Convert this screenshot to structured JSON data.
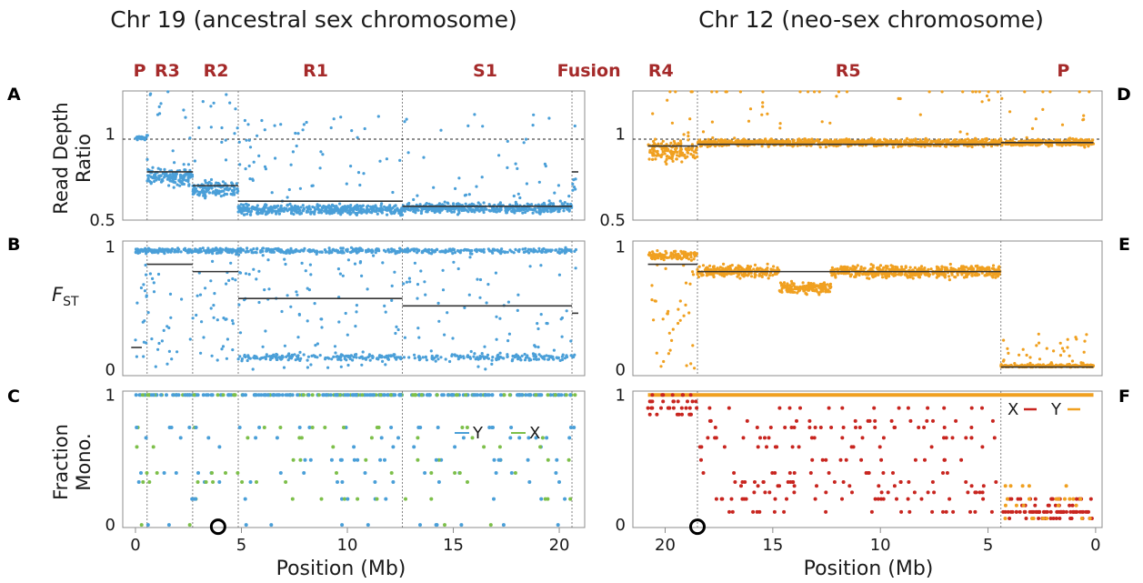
{
  "colors": {
    "chr19_y": "#4a9fd8",
    "chr19_x": "#7dbf4a",
    "chr12_x": "#c8251f",
    "chr12_y": "#f0a020",
    "chr12_points": "#f0a020",
    "region_label": "#a52a2a",
    "segment_line": "#333333"
  },
  "titles": {
    "left": "Chr 19 (ancestral sex chromosome)",
    "right": "Chr 12 (neo-sex chromosome)"
  },
  "regions": {
    "left": [
      {
        "label": "P",
        "x": 0.2
      },
      {
        "label": "R3",
        "x": 1.5
      },
      {
        "label": "R2",
        "x": 3.8
      },
      {
        "label": "R1",
        "x": 8.5
      },
      {
        "label": "S1",
        "x": 16.5
      },
      {
        "label": "Fusion",
        "x": 21.4
      }
    ],
    "right": [
      {
        "label": "R4",
        "x": 20.2
      },
      {
        "label": "R5",
        "x": 11.5
      },
      {
        "label": "P",
        "x": 1.5
      }
    ]
  },
  "panel_letters": [
    "A",
    "B",
    "C",
    "D",
    "E",
    "F"
  ],
  "y_labels": {
    "read_depth_line1": "Read Depth",
    "read_depth_line2": "Ratio",
    "fst_main": "F",
    "fst_sub": "ST",
    "fraction_line1": "Fraction",
    "fraction_line2": "Mono."
  },
  "x_label": "Position (Mb)",
  "legends": {
    "left": [
      {
        "name": "Y",
        "color": "#4a9fd8"
      },
      {
        "name": "X",
        "color": "#7dbf4a"
      }
    ],
    "right": [
      {
        "name": "X",
        "color": "#c8251f"
      },
      {
        "name": "Y",
        "color": "#f0a020"
      }
    ]
  },
  "chart_data": [
    {
      "type": "scatter",
      "panel": "A",
      "chromosome": "Chr 19",
      "xlabel": "Position (Mb)",
      "ylabel": "Read Depth Ratio",
      "x_ticks": [
        0,
        5,
        10,
        15,
        20
      ],
      "y_ticks": [
        0.5,
        1
      ],
      "xlim": [
        -0.6,
        21.2
      ],
      "ylim": [
        0.5,
        1.25
      ],
      "reference_line": 0.97,
      "boundaries": [
        0.55,
        2.7,
        4.85,
        12.6,
        20.6
      ],
      "segments": [
        {
          "x0": 0.55,
          "x1": 2.7,
          "y": 0.78
        },
        {
          "x0": 2.7,
          "x1": 4.85,
          "y": 0.7
        },
        {
          "x0": 4.85,
          "x1": 12.6,
          "y": 0.61
        },
        {
          "x0": 12.6,
          "x1": 20.6,
          "y": 0.58
        },
        {
          "x0": 20.6,
          "x1": 20.9,
          "y": 0.78
        }
      ]
    },
    {
      "type": "scatter",
      "panel": "B",
      "chromosome": "Chr 19",
      "ylabel": "FST",
      "x_ticks": [
        0,
        5,
        10,
        15,
        20
      ],
      "y_ticks": [
        0,
        1
      ],
      "xlim": [
        -0.6,
        21.2
      ],
      "ylim": [
        -0.05,
        1.05
      ],
      "boundaries": [
        0.55,
        2.7,
        4.85,
        12.6,
        20.6
      ],
      "segments": [
        {
          "x0": -0.2,
          "x1": 0.3,
          "y": 0.18
        },
        {
          "x0": 0.55,
          "x1": 2.7,
          "y": 0.86
        },
        {
          "x0": 2.7,
          "x1": 4.85,
          "y": 0.8
        },
        {
          "x0": 4.85,
          "x1": 12.6,
          "y": 0.58
        },
        {
          "x0": 12.6,
          "x1": 20.6,
          "y": 0.52
        },
        {
          "x0": 20.6,
          "x1": 20.9,
          "y": 0.46
        }
      ]
    },
    {
      "type": "scatter",
      "panel": "C",
      "chromosome": "Chr 19",
      "ylabel": "Fraction Mono.",
      "x_ticks": [
        0,
        5,
        10,
        15,
        20
      ],
      "y_ticks": [
        0,
        1
      ],
      "xlim": [
        -0.6,
        21.2
      ],
      "ylim": [
        -0.02,
        1.03
      ],
      "boundaries": [
        0.55,
        2.7,
        4.85,
        12.6,
        20.6
      ],
      "series": [
        {
          "name": "Y"
        },
        {
          "name": "X"
        }
      ],
      "marker_x": 3.9
    },
    {
      "type": "scatter",
      "panel": "D",
      "chromosome": "Chr 12",
      "xlabel": "Position (Mb)",
      "ylabel": "Read Depth Ratio",
      "x_ticks": [
        20,
        15,
        10,
        5,
        0
      ],
      "y_ticks": [
        0.5,
        1
      ],
      "xlim": [
        21.5,
        -0.3
      ],
      "ylim": [
        0.5,
        1.25
      ],
      "reference_line": 0.97,
      "boundaries": [
        18.5,
        4.4
      ],
      "segments": [
        {
          "x0": 20.8,
          "x1": 18.5,
          "y": 0.93
        },
        {
          "x0": 18.5,
          "x1": 4.4,
          "y": 0.94
        },
        {
          "x0": 4.4,
          "x1": 0.1,
          "y": 0.95
        }
      ]
    },
    {
      "type": "scatter",
      "panel": "E",
      "chromosome": "Chr 12",
      "ylabel": "FST",
      "x_ticks": [
        20,
        15,
        10,
        5,
        0
      ],
      "y_ticks": [
        0,
        1
      ],
      "xlim": [
        21.5,
        -0.3
      ],
      "ylim": [
        -0.05,
        1.05
      ],
      "boundaries": [
        18.5,
        4.4
      ],
      "segments": [
        {
          "x0": 20.8,
          "x1": 18.5,
          "y": 0.86
        },
        {
          "x0": 18.5,
          "x1": 4.4,
          "y": 0.8
        },
        {
          "x0": 4.4,
          "x1": 0.1,
          "y": 0.02
        }
      ]
    },
    {
      "type": "scatter",
      "panel": "F",
      "chromosome": "Chr 12",
      "ylabel": "Fraction Mono.",
      "x_ticks": [
        20,
        15,
        10,
        5,
        0
      ],
      "y_ticks": [
        0,
        1
      ],
      "xlim": [
        21.5,
        -0.3
      ],
      "ylim": [
        -0.02,
        1.03
      ],
      "boundaries": [
        18.5,
        4.4
      ],
      "series": [
        {
          "name": "X"
        },
        {
          "name": "Y"
        }
      ],
      "marker_x": 18.5
    }
  ]
}
